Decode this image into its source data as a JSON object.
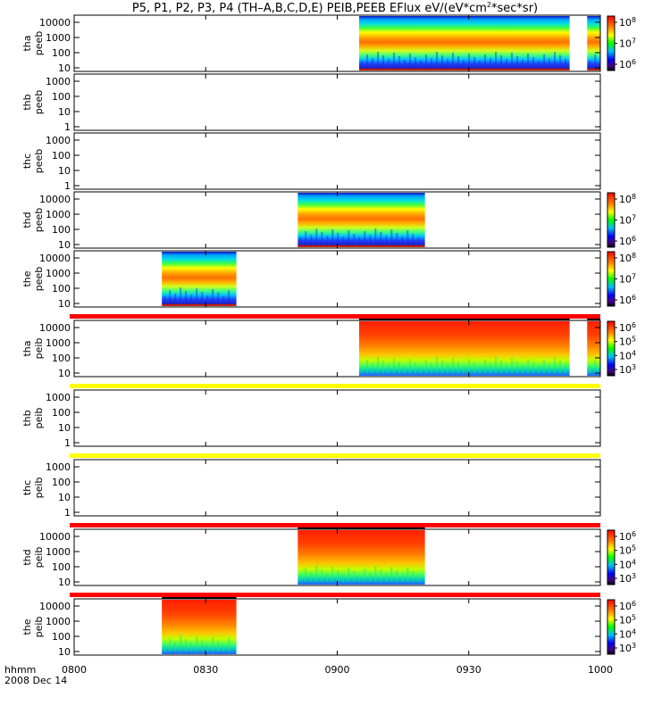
{
  "chart_data": {
    "type": "heatmap",
    "title": "P5, P1, P2, P3, P4 (TH-A,B,C,D,E) PEIB,PEEB EFlux eV/(eV*cm^2*sec*sr)",
    "title_parts": [
      "P5, P1, P2, P3, P4 (TH–A,B,C,D,E) PEIB,PEEB EFlux eV/(eV*cm",
      "2",
      "*sec*sr)"
    ],
    "x_axis": {
      "label_line1": "hhmm",
      "label_line2": "2008 Dec 14",
      "range": [
        "0800",
        "1000"
      ],
      "ticks": [
        "0800",
        "0830",
        "0900",
        "0930",
        "1000"
      ]
    },
    "panels": [
      {
        "probe": "tha",
        "product": "peeb",
        "yticks": [
          "10",
          "100",
          "1000",
          "10000"
        ],
        "data": [
          [
            "0905",
            "0953"
          ],
          [
            "0957",
            "1000"
          ]
        ],
        "colorbar": [
          "10^6",
          "10^7",
          "10^8"
        ],
        "top_stripe": "none"
      },
      {
        "probe": "thb",
        "product": "peeb",
        "yticks": [
          "1",
          "10",
          "100",
          "1000"
        ],
        "data": [],
        "colorbar": null,
        "top_stripe": "none"
      },
      {
        "probe": "thc",
        "product": "peeb",
        "yticks": [
          "1",
          "10",
          "100",
          "1000"
        ],
        "data": [],
        "colorbar": null,
        "top_stripe": "none"
      },
      {
        "probe": "thd",
        "product": "peeb",
        "yticks": [
          "10",
          "100",
          "1000",
          "10000"
        ],
        "data": [
          [
            "0851",
            "0920"
          ]
        ],
        "colorbar": [
          "10^6",
          "10^7",
          "10^8"
        ],
        "top_stripe": "none"
      },
      {
        "probe": "the",
        "product": "peeb",
        "yticks": [
          "10",
          "100",
          "1000",
          "10000"
        ],
        "data": [
          [
            "0820",
            "0837"
          ]
        ],
        "colorbar": [
          "10^6",
          "10^7",
          "10^8"
        ],
        "top_stripe": "none"
      },
      {
        "probe": "tha",
        "product": "peib",
        "yticks": [
          "10",
          "100",
          "1000",
          "10000"
        ],
        "data": [
          [
            "0905",
            "0953"
          ],
          [
            "0957",
            "1000"
          ]
        ],
        "colorbar": [
          "10^3",
          "10^4",
          "10^5",
          "10^6"
        ],
        "top_stripe": "red"
      },
      {
        "probe": "thb",
        "product": "peib",
        "yticks": [
          "1",
          "10",
          "100",
          "1000"
        ],
        "data": [],
        "colorbar": null,
        "top_stripe": "yellow"
      },
      {
        "probe": "thc",
        "product": "peib",
        "yticks": [
          "1",
          "10",
          "100",
          "1000"
        ],
        "data": [],
        "colorbar": null,
        "top_stripe": "yellow"
      },
      {
        "probe": "thd",
        "product": "peib",
        "yticks": [
          "10",
          "100",
          "1000",
          "10000"
        ],
        "data": [
          [
            "0851",
            "0920"
          ]
        ],
        "colorbar": [
          "10^3",
          "10^4",
          "10^5",
          "10^6"
        ],
        "top_stripe": "red"
      },
      {
        "probe": "the",
        "product": "peib",
        "yticks": [
          "10",
          "100",
          "1000",
          "10000"
        ],
        "data": [
          [
            "0820",
            "0837"
          ]
        ],
        "colorbar": [
          "10^3",
          "10^4",
          "10^5",
          "10^6"
        ],
        "top_stripe": "red"
      }
    ],
    "colors": {
      "stripe_red": "#ff0000",
      "stripe_yellow": "#ffff00",
      "axis": "#000000"
    }
  }
}
